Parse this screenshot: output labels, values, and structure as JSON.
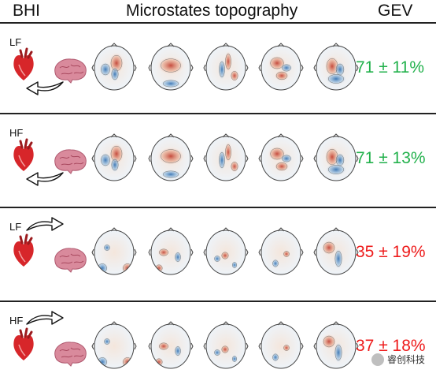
{
  "headers": {
    "bhi": "BHI",
    "topography": "Microstates topography",
    "gev": "GEV"
  },
  "rows": [
    {
      "band": "LF",
      "direction": "brain-to-heart",
      "gev": "71 ± 11%",
      "gev_color": "#22b14c",
      "style": "smooth"
    },
    {
      "band": "HF",
      "direction": "brain-to-heart",
      "gev": "71 ± 13%",
      "gev_color": "#22b14c",
      "style": "smooth"
    },
    {
      "band": "LF",
      "direction": "heart-to-brain",
      "gev": "35 ± 19%",
      "gev_color": "#ee1c1c",
      "style": "patchy"
    },
    {
      "band": "HF",
      "direction": "heart-to-brain",
      "gev": "37 ± 18%",
      "gev_color": "#ee1c1c",
      "style": "patchy"
    }
  ],
  "colors": {
    "positive": "#c0392b",
    "negative": "#2b6cb0",
    "heart": "#d7262a",
    "brain": "#d98a9c"
  },
  "watermark": {
    "text": "睿创科技"
  },
  "icons": [
    "heart-icon",
    "brain-icon",
    "arrow-icon",
    "wechat-icon"
  ]
}
